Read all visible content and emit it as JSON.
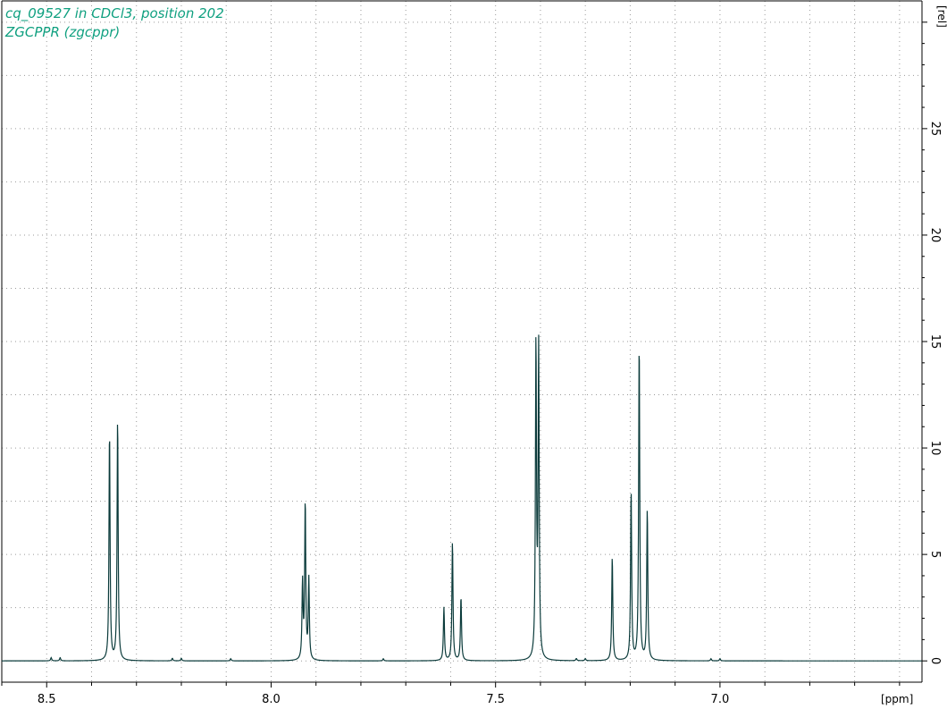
{
  "header": {
    "line1": "cq_09527 in CDCl3, position 202",
    "line2": "ZGCPPR (zgcppr)"
  },
  "colors": {
    "spectrum": "#0b3b3b",
    "title": "#10a080",
    "grid": "#9a9a9a"
  },
  "chart_data": {
    "type": "line",
    "title": "cq_09527 in CDCl3, position 202",
    "subtitle": "ZGCPPR (zgcppr)",
    "xlabel": "[ppm]",
    "ylabel": "[rel]",
    "xlim": [
      8.6,
      6.55
    ],
    "ylim": [
      -1,
      31
    ],
    "x_reversed": true,
    "x_ticks": [
      8.5,
      8.0,
      7.5,
      7.0
    ],
    "x_tick_labels": [
      "8.5",
      "8.0",
      "7.5",
      "7.0"
    ],
    "y_ticks": [
      0,
      5,
      10,
      15,
      20,
      25
    ],
    "y_tick_labels": [
      "0",
      "5",
      "10",
      "15",
      "20",
      "25"
    ],
    "grid": true,
    "series": [
      {
        "peaks": [
          {
            "ppm": 8.36,
            "height": 10.8
          },
          {
            "ppm": 8.342,
            "height": 11.4
          },
          {
            "ppm": 7.93,
            "height": 3.6
          },
          {
            "ppm": 7.924,
            "height": 7.4
          },
          {
            "ppm": 7.916,
            "height": 3.8
          },
          {
            "ppm": 7.615,
            "height": 2.5
          },
          {
            "ppm": 7.596,
            "height": 5.6
          },
          {
            "ppm": 7.577,
            "height": 3.0
          },
          {
            "ppm": 7.41,
            "height": 14.8
          },
          {
            "ppm": 7.404,
            "height": 14.6
          },
          {
            "ppm": 7.24,
            "height": 4.9
          },
          {
            "ppm": 7.198,
            "height": 8.0
          },
          {
            "ppm": 7.18,
            "height": 15.0
          },
          {
            "ppm": 7.162,
            "height": 7.1
          },
          {
            "ppm": 8.49,
            "height": 0.15
          },
          {
            "ppm": 8.47,
            "height": 0.15
          },
          {
            "ppm": 8.22,
            "height": 0.12
          },
          {
            "ppm": 8.2,
            "height": 0.12
          },
          {
            "ppm": 8.09,
            "height": 0.1
          },
          {
            "ppm": 7.75,
            "height": 0.1
          },
          {
            "ppm": 7.32,
            "height": 0.1
          },
          {
            "ppm": 7.3,
            "height": 0.1
          },
          {
            "ppm": 7.02,
            "height": 0.1
          },
          {
            "ppm": 7.0,
            "height": 0.1
          }
        ],
        "baseline": 0
      }
    ]
  }
}
